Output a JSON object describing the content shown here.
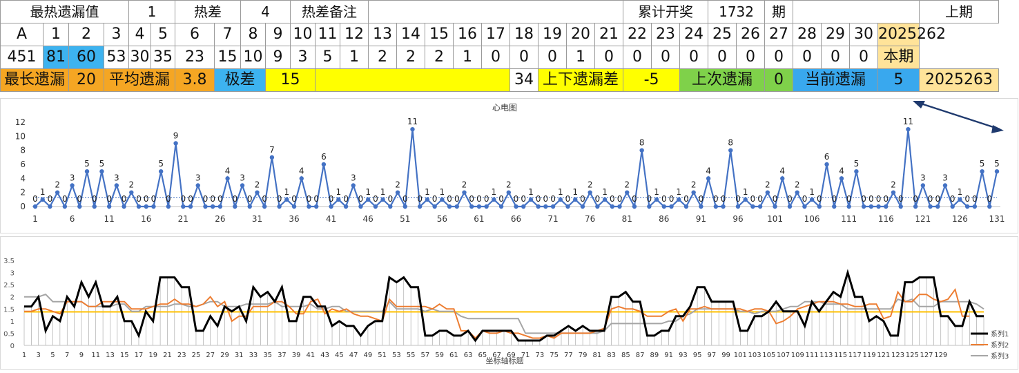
{
  "row0": {
    "title": "最热遗漏值",
    "v1": "1",
    "hot_diff_label": "热差",
    "hot_diff_val": "4",
    "hot_note_label": "热差备注",
    "cumulative_label": "累计开奖",
    "cumulative_val": "1732",
    "period_label": "期",
    "prev_label": "上期"
  },
  "row1": {
    "first": "A",
    "cols": [
      "1",
      "2",
      "3",
      "4",
      "5",
      "6",
      "7",
      "8",
      "9",
      "10",
      "11",
      "12",
      "13",
      "14",
      "15",
      "16",
      "17",
      "18",
      "19",
      "20",
      "21",
      "22",
      "23",
      "24",
      "25",
      "26",
      "27",
      "28",
      "29",
      "30"
    ],
    "last": "2025262"
  },
  "row2": {
    "first": "451",
    "vals": [
      "81",
      "60",
      "53",
      "30",
      "35",
      "23",
      "15",
      "10",
      "9",
      "3",
      "5",
      "1",
      "2",
      "2",
      "2",
      "1",
      "0",
      "0",
      "0",
      "1",
      "0",
      "0",
      "0",
      "0",
      "0",
      "0",
      "0",
      "0",
      "0",
      "0"
    ],
    "last": "本期"
  },
  "row3": {
    "max_label": "最长遗漏",
    "max_val": "20",
    "avg_label": "平均遗漏",
    "avg_val": "3.8",
    "range_label": "极差",
    "range_val": "15",
    "num": "34",
    "updown_label": "上下遗漏差",
    "updown_val": "-5",
    "last_label": "上次遗漏",
    "last_val": "0",
    "cur_label": "当前遗漏",
    "cur_val": "5",
    "next_period": "2025263"
  },
  "colors": {
    "light_blue": "#3db3f0",
    "orange": "#f5a623",
    "yellow": "#ffff00",
    "green": "#7fd14a",
    "blue": "#39a8ee",
    "cream": "#ffe399",
    "line_blue": "#4472c4",
    "arrow": "#1f3a6e",
    "s1": "#000000",
    "s2": "#ed7d31",
    "s3": "#a5a5a5",
    "avg": "#ffc000"
  },
  "chart_data": [
    {
      "type": "line",
      "title": "心电图",
      "ylim": [
        0,
        12
      ],
      "yticks": [
        0,
        2,
        4,
        6,
        8,
        10,
        12
      ],
      "x": [
        1,
        2,
        3,
        4,
        5,
        6,
        7,
        8,
        9,
        10,
        11,
        12,
        13,
        14,
        15,
        16,
        17,
        18,
        19,
        20,
        21,
        22,
        23,
        24,
        25,
        26,
        27,
        28,
        29,
        30,
        31,
        32,
        33,
        34,
        35,
        36,
        37,
        38,
        39,
        40,
        41,
        42,
        43,
        44,
        45,
        46,
        47,
        48,
        49,
        50,
        51,
        52,
        53,
        54,
        55,
        56,
        57,
        58,
        59,
        60,
        61,
        62,
        63,
        64,
        65,
        66,
        67,
        68,
        69,
        70,
        71,
        72,
        73,
        74,
        75,
        76,
        77,
        78,
        79,
        80,
        81,
        82,
        83,
        84,
        85,
        86,
        87,
        88,
        89,
        90,
        91,
        92,
        93,
        94,
        95,
        96,
        97,
        98,
        99,
        100,
        101,
        102,
        103,
        104,
        105,
        106,
        107,
        108,
        109,
        110,
        111,
        112,
        113,
        114,
        115,
        116,
        117,
        118,
        119,
        120,
        121,
        122,
        123,
        124,
        125,
        126,
        127,
        128,
        129,
        130,
        131
      ],
      "xtick_labels": [
        "1",
        "6",
        "11",
        "16",
        "21",
        "26",
        "31",
        "36",
        "41",
        "46",
        "51",
        "56",
        "61",
        "66",
        "71",
        "76",
        "81",
        "86",
        "91",
        "96",
        "101",
        "106",
        "111",
        "116",
        "121",
        "126",
        "131"
      ],
      "values": [
        0,
        1,
        0,
        2,
        0,
        3,
        0,
        5,
        0,
        5,
        0,
        3,
        0,
        2,
        0,
        0,
        0,
        5,
        0,
        9,
        0,
        0,
        3,
        0,
        0,
        0,
        4,
        0,
        3,
        0,
        2,
        0,
        7,
        0,
        1,
        0,
        4,
        0,
        0,
        6,
        0,
        1,
        0,
        3,
        0,
        1,
        0,
        1,
        0,
        2,
        0,
        11,
        0,
        1,
        0,
        1,
        0,
        0,
        2,
        0,
        0,
        0,
        1,
        0,
        2,
        0,
        0,
        1,
        0,
        0,
        0,
        1,
        0,
        1,
        0,
        2,
        0,
        1,
        0,
        0,
        2,
        0,
        8,
        0,
        1,
        0,
        0,
        1,
        0,
        2,
        0,
        4,
        0,
        0,
        8,
        0,
        1,
        0,
        0,
        2,
        0,
        4,
        0,
        2,
        0,
        1,
        0,
        6,
        0,
        4,
        0,
        5,
        0,
        0,
        0,
        0,
        2,
        0,
        11,
        0,
        3,
        0,
        0,
        3,
        0,
        1,
        0,
        0,
        5,
        0,
        5
      ],
      "avg_value": 1.3,
      "show_data_labels": true
    },
    {
      "type": "line",
      "xlabel": "坐标轴标题",
      "ylim": [
        0,
        3.5
      ],
      "yticks": [
        "0",
        "0.5",
        "1",
        "1.5",
        "2",
        "2.5",
        "3",
        "3.5"
      ],
      "xtick_labels": [
        "1",
        "3",
        "5",
        "7",
        "9",
        "11",
        "13",
        "15",
        "17",
        "19",
        "21",
        "23",
        "25",
        "27",
        "29",
        "31",
        "33",
        "35",
        "37",
        "39",
        "41",
        "43",
        "45",
        "47",
        "49",
        "51",
        "53",
        "55",
        "57",
        "59",
        "61",
        "63",
        "65",
        "67",
        "69",
        "71",
        "73",
        "75",
        "77",
        "79",
        "81",
        "83",
        "85",
        "87",
        "89",
        "91",
        "93",
        "95",
        "97",
        "99",
        "101",
        "103",
        "105",
        "107",
        "109",
        "111",
        "113",
        "115",
        "117",
        "119",
        "121",
        "123",
        "125",
        "127",
        "129"
      ],
      "series": [
        {
          "name": "系列1",
          "values": [
            1.6,
            1.6,
            2,
            0.6,
            1.2,
            1,
            2,
            1.6,
            2.6,
            2,
            2.6,
            1.6,
            1.6,
            2,
            1,
            1,
            0.4,
            1.4,
            1,
            2.8,
            2.8,
            2.8,
            2.4,
            2.4,
            0.6,
            0.6,
            1.2,
            0.8,
            1.6,
            1.4,
            1.6,
            1,
            2.4,
            2,
            2.2,
            1.8,
            2.4,
            1,
            1,
            2,
            2,
            1.6,
            1.6,
            0.8,
            1,
            0.8,
            0.8,
            0.4,
            0.8,
            1,
            1,
            2.8,
            2.6,
            2.8,
            2.4,
            2.4,
            0.4,
            0.4,
            0.6,
            0.6,
            0.4,
            0.4,
            0.6,
            0.2,
            0.6,
            0.6,
            0.6,
            0.6,
            0.6,
            0.2,
            0.2,
            0.2,
            0.2,
            0.4,
            0.4,
            0.6,
            0.8,
            0.6,
            0.8,
            0.6,
            0.6,
            0.6,
            2,
            2,
            2.2,
            1.8,
            1.8,
            0.4,
            0.4,
            0.6,
            0.6,
            1.2,
            1.2,
            1.6,
            2.4,
            2.4,
            1.8,
            1.8,
            1.8,
            1.8,
            0.6,
            0.6,
            1.2,
            1.2,
            1.4,
            1.8,
            1.4,
            1.4,
            1.4,
            0.8,
            1.8,
            1.4,
            1.8,
            2.2,
            2,
            3,
            2,
            2,
            1,
            1.2,
            1,
            0.4,
            0.4,
            2.6,
            2.6,
            2.8,
            2.8,
            2.8,
            1.2,
            1.2,
            0.8,
            0.8,
            1.8,
            1.2,
            1.2
          ]
        },
        {
          "name": "系列2",
          "values": [
            1.4,
            1.4,
            1.5,
            1.5,
            1.4,
            1.3,
            1.8,
            1.8,
            1.8,
            1.6,
            1.6,
            1.8,
            1.8,
            1.8,
            1.8,
            1.5,
            1.5,
            1.5,
            1.6,
            1.7,
            1.7,
            1.9,
            1.7,
            1.7,
            1.6,
            1.7,
            2,
            1.6,
            1.8,
            1,
            1.2,
            1.2,
            1.6,
            1.6,
            1.6,
            1.8,
            1.8,
            1.6,
            1.3,
            1.3,
            1.8,
            1.9,
            1.3,
            1.5,
            1.4,
            1.5,
            1.3,
            1.2,
            1.2,
            1.1,
            1,
            1.9,
            1.6,
            1.6,
            1.6,
            1.6,
            1.6,
            1.5,
            1.7,
            1.5,
            1.5,
            0.6,
            0.6,
            0.3,
            0.6,
            0.5,
            0.5,
            0.6,
            0.5,
            0.5,
            0.4,
            0.3,
            0.3,
            0.4,
            0.3,
            0.5,
            0.5,
            0.5,
            0.5,
            0.5,
            0.6,
            0.7,
            1.5,
            1.6,
            1.5,
            1.5,
            1.4,
            1.2,
            1.2,
            1.2,
            1.4,
            1.5,
            1,
            1.5,
            1.5,
            1.6,
            1.5,
            1.5,
            1.5,
            1.5,
            1.5,
            1.4,
            1.5,
            1.5,
            1.4,
            0.9,
            1,
            1.2,
            1.5,
            1.6,
            1.7,
            1.8,
            1.8,
            1.8,
            1.7,
            1.7,
            1.6,
            1.6,
            1.7,
            1.7,
            1.1,
            1.2,
            2.2,
            1.8,
            1.8,
            2.1,
            2.1,
            1.9,
            1.8,
            1.9,
            2.3,
            1.2,
            1.2
          ]
        },
        {
          "name": "系列3",
          "values": [
            2,
            2,
            2,
            2.1,
            1.8,
            1.8,
            1.8,
            1.8,
            1.8,
            1.6,
            1.6,
            1.6,
            1.6,
            1.7,
            1.7,
            1.4,
            1.4,
            1.6,
            1.6,
            1.6,
            1.6,
            1.7,
            1.7,
            1.6,
            1.6,
            1.7,
            1.8,
            1.8,
            1.6,
            1.6,
            1.6,
            1.7,
            1.7,
            1.7,
            1.7,
            1.8,
            1.6,
            1.6,
            1.6,
            1.6,
            1.7,
            1.5,
            1.5,
            1.6,
            1.6,
            1.4,
            1.4,
            1.4,
            1.4,
            1.4,
            1.4,
            1.8,
            1.5,
            1.5,
            1.5,
            1.5,
            1.4,
            1.5,
            1.4,
            1.4,
            1.4,
            1.2,
            1.1,
            1.1,
            1.1,
            1.1,
            1.1,
            1.1,
            1.1,
            1.1,
            0.5,
            0.5,
            0.5,
            0.5,
            0.5,
            0.5,
            0.5,
            0.5,
            0.5,
            0.5,
            0.5,
            0.6,
            0.9,
            0.9,
            0.9,
            0.9,
            0.9,
            0.9,
            0.9,
            0.9,
            1,
            1,
            1.2,
            1.3,
            1.5,
            1.5,
            1.5,
            1.5,
            1.5,
            1.5,
            1.4,
            1.4,
            1.3,
            1.4,
            1.4,
            1.4,
            1.5,
            1.6,
            1.6,
            1.8,
            1.8,
            1.8,
            1.7,
            1.7,
            1.7,
            1.5,
            1.5,
            1.5,
            1.5,
            1.5,
            1.5,
            1.5,
            1.9,
            1.8,
            1.9,
            1.6,
            1.6,
            1.6,
            1.8,
            1.8,
            1.8,
            1.8,
            1.8,
            1.7,
            1.5
          ]
        },
        {
          "name": "",
          "values": [
            1.4,
            1.4
          ]
        }
      ],
      "legend": "right",
      "avg_value": 1.38
    }
  ]
}
